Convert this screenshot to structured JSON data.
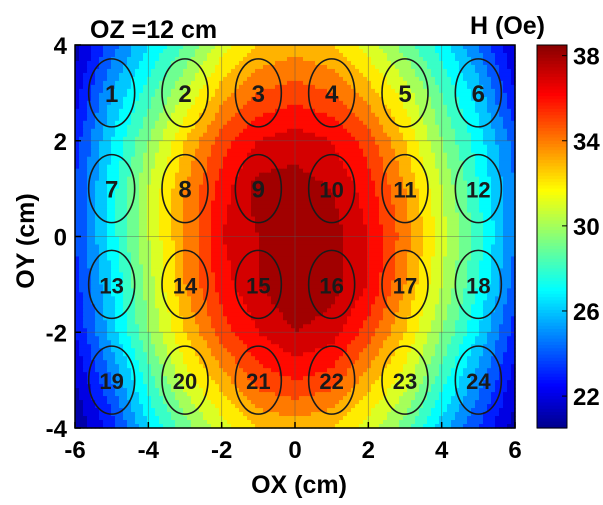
{
  "chart_data": {
    "type": "heatmap",
    "title": "OZ =12 cm",
    "xlabel": "OX (cm)",
    "ylabel": "OY (cm)",
    "xlim": [
      -6,
      6
    ],
    "ylim": [
      -4,
      4
    ],
    "x_ticks": [
      -6,
      -4,
      -2,
      0,
      2,
      4,
      6
    ],
    "y_ticks": [
      -4,
      -2,
      0,
      2,
      4
    ],
    "x_tick_labels": [
      "-6",
      "-4",
      "-2",
      "0",
      "2",
      "4",
      "6"
    ],
    "y_tick_labels": [
      "-4",
      "-2",
      "0",
      "2",
      "4"
    ],
    "grid": true,
    "colorbar": {
      "title": "H (Oe)",
      "range": [
        20.5,
        38.5
      ],
      "ticks": [
        22,
        26,
        30,
        34,
        38
      ],
      "tick_labels": [
        "22",
        "26",
        "30",
        "34",
        "38"
      ],
      "colormap": "jet",
      "placement": "right"
    },
    "x_grid": [
      -6,
      -5,
      -4,
      -3,
      -2,
      -1,
      0,
      1,
      2,
      3,
      4,
      5,
      6
    ],
    "y_grid": [
      4,
      3,
      2,
      1,
      0,
      -1,
      -2,
      -3,
      -4
    ],
    "z": [
      [
        21.0,
        24.0,
        26.5,
        28.5,
        31.0,
        32.5,
        33.0,
        32.5,
        31.0,
        29.0,
        27.0,
        24.5,
        21.5
      ],
      [
        22.0,
        25.5,
        28.0,
        30.5,
        33.0,
        34.5,
        35.0,
        34.5,
        33.0,
        31.0,
        28.5,
        26.0,
        22.5
      ],
      [
        23.0,
        26.5,
        29.5,
        32.5,
        35.0,
        36.5,
        37.0,
        36.5,
        35.0,
        32.5,
        29.5,
        27.0,
        24.0
      ],
      [
        23.5,
        27.0,
        30.5,
        33.5,
        36.0,
        38.0,
        38.0,
        37.5,
        36.0,
        33.5,
        30.5,
        27.5,
        24.5
      ],
      [
        23.5,
        27.0,
        30.5,
        33.5,
        36.5,
        37.5,
        38.5,
        38.0,
        36.5,
        34.0,
        31.0,
        28.0,
        24.5
      ],
      [
        23.0,
        26.5,
        30.0,
        33.5,
        36.0,
        37.5,
        38.5,
        38.0,
        36.5,
        33.5,
        30.5,
        27.5,
        24.0
      ],
      [
        22.5,
        26.0,
        29.5,
        32.5,
        35.0,
        36.5,
        37.5,
        37.0,
        35.0,
        32.5,
        29.5,
        26.5,
        23.0
      ],
      [
        21.5,
        24.5,
        28.0,
        31.0,
        33.0,
        35.0,
        35.5,
        35.0,
        33.0,
        31.0,
        28.0,
        25.0,
        22.0
      ],
      [
        20.5,
        23.0,
        26.5,
        29.0,
        31.0,
        32.5,
        33.0,
        32.5,
        31.0,
        29.0,
        26.0,
        23.5,
        21.0
      ]
    ],
    "annotations": {
      "type": "ellipse-sensors",
      "items": [
        {
          "label": "1",
          "x": -5,
          "y": 3
        },
        {
          "label": "2",
          "x": -3,
          "y": 3
        },
        {
          "label": "3",
          "x": -1,
          "y": 3
        },
        {
          "label": "4",
          "x": 1,
          "y": 3
        },
        {
          "label": "5",
          "x": 3,
          "y": 3
        },
        {
          "label": "6",
          "x": 5,
          "y": 3
        },
        {
          "label": "7",
          "x": -5,
          "y": 1
        },
        {
          "label": "8",
          "x": -3,
          "y": 1
        },
        {
          "label": "9",
          "x": -1,
          "y": 1
        },
        {
          "label": "10",
          "x": 1,
          "y": 1
        },
        {
          "label": "11",
          "x": 3,
          "y": 1
        },
        {
          "label": "12",
          "x": 5,
          "y": 1
        },
        {
          "label": "13",
          "x": -5,
          "y": -1
        },
        {
          "label": "14",
          "x": -3,
          "y": -1
        },
        {
          "label": "15",
          "x": -1,
          "y": -1
        },
        {
          "label": "16",
          "x": 1,
          "y": -1
        },
        {
          "label": "17",
          "x": 3,
          "y": -1
        },
        {
          "label": "18",
          "x": 5,
          "y": -1
        },
        {
          "label": "19",
          "x": -5,
          "y": -3
        },
        {
          "label": "20",
          "x": -3,
          "y": -3
        },
        {
          "label": "21",
          "x": -1,
          "y": -3
        },
        {
          "label": "22",
          "x": 1,
          "y": -3
        },
        {
          "label": "23",
          "x": 3,
          "y": -3
        },
        {
          "label": "24",
          "x": 5,
          "y": -3
        }
      ]
    }
  }
}
